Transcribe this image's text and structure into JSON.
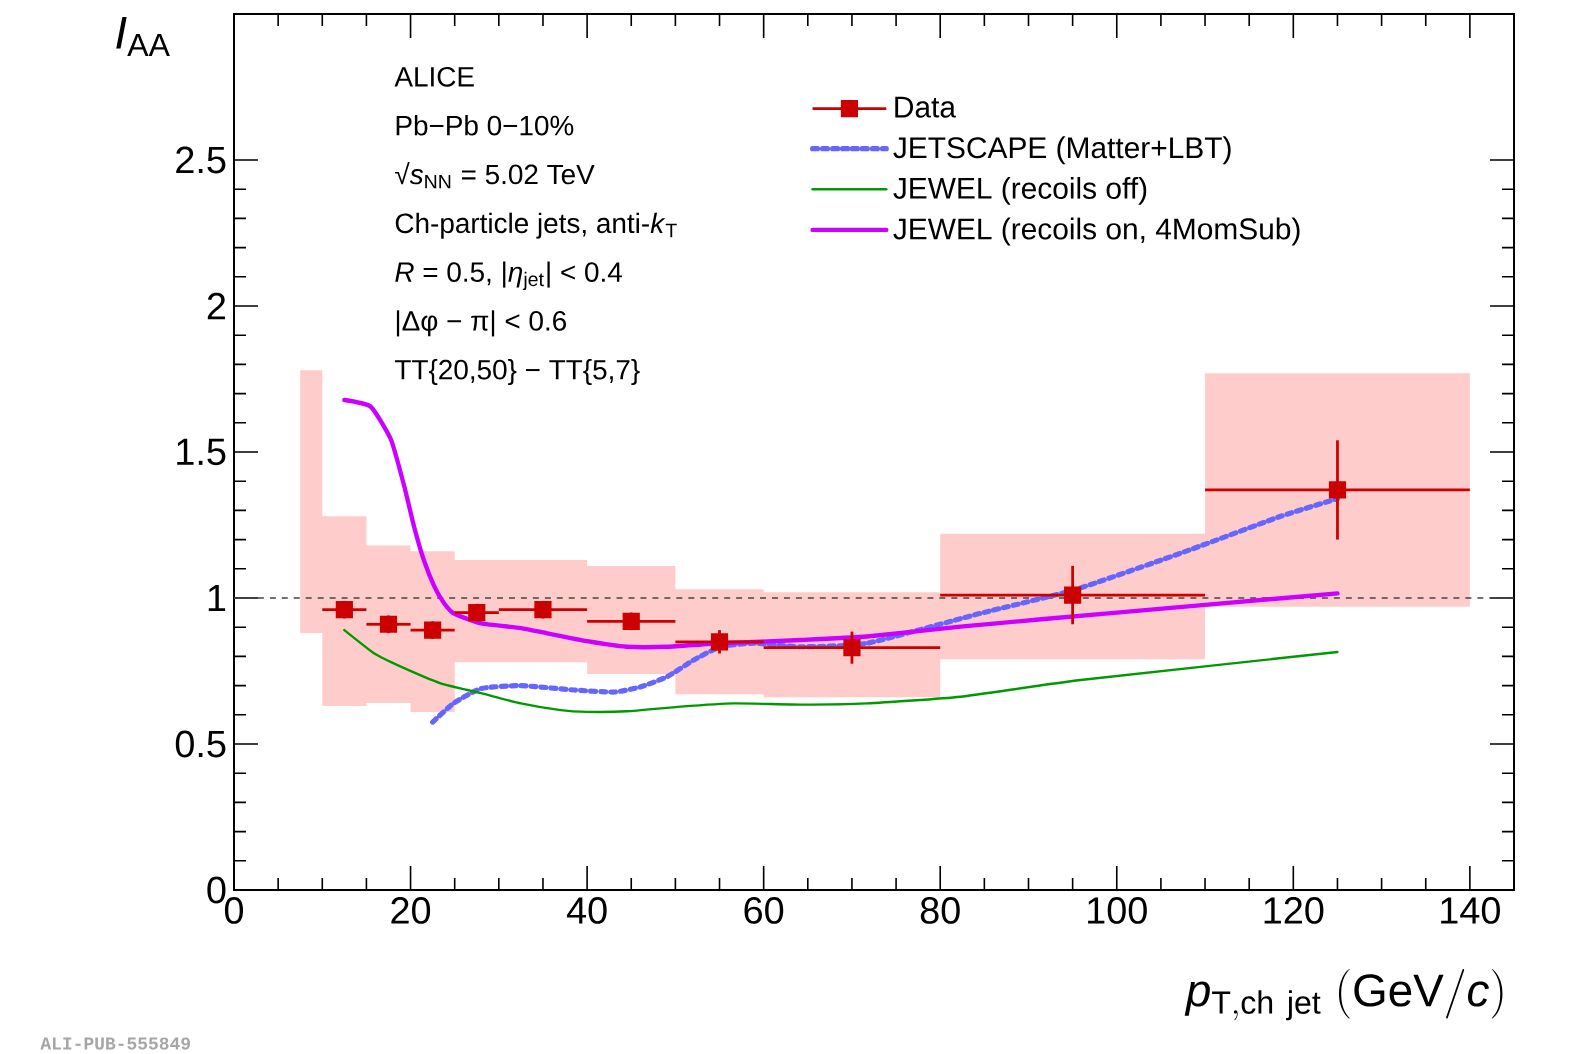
{
  "chart_data": {
    "type": "scatter",
    "xlabel": "\\mathit{p}_{\\mathrm{T,ch\\ jet}}\\ (\\mathrm{GeV}/\\mathit{c})",
    "ylabel": "\\mathit{I}_{\\mathrm{AA}}",
    "annotations": [
      "ALICE",
      "Pb−Pb 0−10%",
      "√*s*$_{NN}$ = 5.02 TeV",
      "Ch-particle jets, anti-*k*$_{T}$",
      "*R* = 0.5, |*η*$_{jet}$| < 0.4",
      "|Δφ − π| < 0.6",
      "TT{20,50} − TT{5,7}",
      "ALI-PUB-555849"
    ],
    "xlim": [
      0,
      145
    ],
    "ylim": [
      0,
      3
    ],
    "xticks": [
      0,
      20,
      40,
      60,
      80,
      100,
      120,
      140
    ],
    "yticks": [
      0,
      0.5,
      1,
      1.5,
      2,
      2.5
    ],
    "legend": "top right",
    "ref_lines": [
      {
        "axis": "y",
        "value": 1,
        "color": "#444444",
        "line_style": "dashed"
      }
    ],
    "series": [
      {
        "type": "area",
        "color": "#ffcccc",
        "x": [
          7.5,
          10,
          10,
          15,
          15,
          20,
          20,
          25,
          25,
          40,
          40,
          50,
          50,
          60,
          60,
          80,
          80,
          110,
          110,
          140
        ],
        "values": [
          null,
          null,
          null,
          null,
          null,
          null,
          null,
          null,
          null,
          null,
          null,
          null,
          null,
          null,
          null,
          null,
          null,
          null,
          null,
          null
        ],
        "upper": [
          1.78,
          1.78,
          1.28,
          1.28,
          1.18,
          1.18,
          1.16,
          1.16,
          1.13,
          1.13,
          1.11,
          1.11,
          1.03,
          1.03,
          1.02,
          1.02,
          1.22,
          1.22,
          1.77,
          1.77
        ],
        "lower": [
          0.88,
          0.88,
          0.63,
          0.63,
          0.64,
          0.64,
          0.61,
          0.61,
          0.78,
          0.78,
          0.74,
          0.74,
          0.67,
          0.67,
          0.66,
          0.66,
          0.79,
          0.79,
          0.97,
          0.97
        ]
      },
      {
        "name": "Data",
        "marker": "square",
        "color": "#cc0000",
        "x": [
          12.5,
          17.5,
          22.5,
          27.5,
          35,
          45,
          55,
          70,
          95,
          125
        ],
        "values": [
          0.96,
          0.91,
          0.89,
          0.95,
          0.96,
          0.92,
          0.85,
          0.83,
          1.01,
          1.37
        ],
        "errors": [
          0.03,
          0.03,
          0.03,
          0.03,
          0.03,
          0.03,
          0.04,
          0.055,
          0.1,
          0.17
        ],
        "xerrors": [
          2.5,
          2.5,
          2.5,
          2.5,
          5,
          5,
          5,
          10,
          15,
          15
        ]
      },
      {
        "name": "JETSCAPE (Matter+LBT)",
        "type": "line",
        "line_style": "dotted",
        "color": "#6666ff",
        "x": [
          22.5,
          24.9,
          28.0,
          32.5,
          38.5,
          43.1,
          46.1,
          49.1,
          52.1,
          55.1,
          58.9,
          64.2,
          71.7,
          84.5,
          95.1,
          107.2,
          118.5,
          125
        ],
        "values": [
          0.575,
          0.64,
          0.69,
          0.7,
          0.685,
          0.678,
          0.696,
          0.731,
          0.788,
          0.833,
          0.845,
          0.833,
          0.845,
          0.947,
          1.027,
          1.153,
          1.279,
          1.34
        ]
      },
      {
        "name": "JEWEL (recoils off)",
        "type": "line",
        "line_style": "solid",
        "color": "#009900",
        "x": [
          12.5,
          15.9,
          18.9,
          23.4,
          28.0,
          32.5,
          37.0,
          40.0,
          44.5,
          50.6,
          56.6,
          64.2,
          71.7,
          82.3,
          95.9,
          125
        ],
        "values": [
          0.89,
          0.81,
          0.765,
          0.708,
          0.674,
          0.639,
          0.616,
          0.61,
          0.612,
          0.628,
          0.639,
          0.635,
          0.639,
          0.662,
          0.719,
          0.815
        ]
      },
      {
        "name": "JEWEL (recoils on, 4MomSub)",
        "type": "line",
        "line_style": "solid",
        "color": "#cc00ff",
        "x": [
          12.5,
          15.5,
          17.8,
          19.3,
          20.4,
          21.5,
          22.7,
          23.8,
          24.9,
          28.0,
          32.5,
          35.5,
          40.0,
          44.5,
          49.1,
          55.1,
          64.2,
          71.7,
          82.3,
          100,
          125
        ],
        "values": [
          1.678,
          1.655,
          1.541,
          1.381,
          1.244,
          1.13,
          1.039,
          0.982,
          0.947,
          0.913,
          0.897,
          0.879,
          0.852,
          0.833,
          0.833,
          0.845,
          0.856,
          0.868,
          0.902,
          0.95,
          1.016
        ]
      }
    ]
  }
}
